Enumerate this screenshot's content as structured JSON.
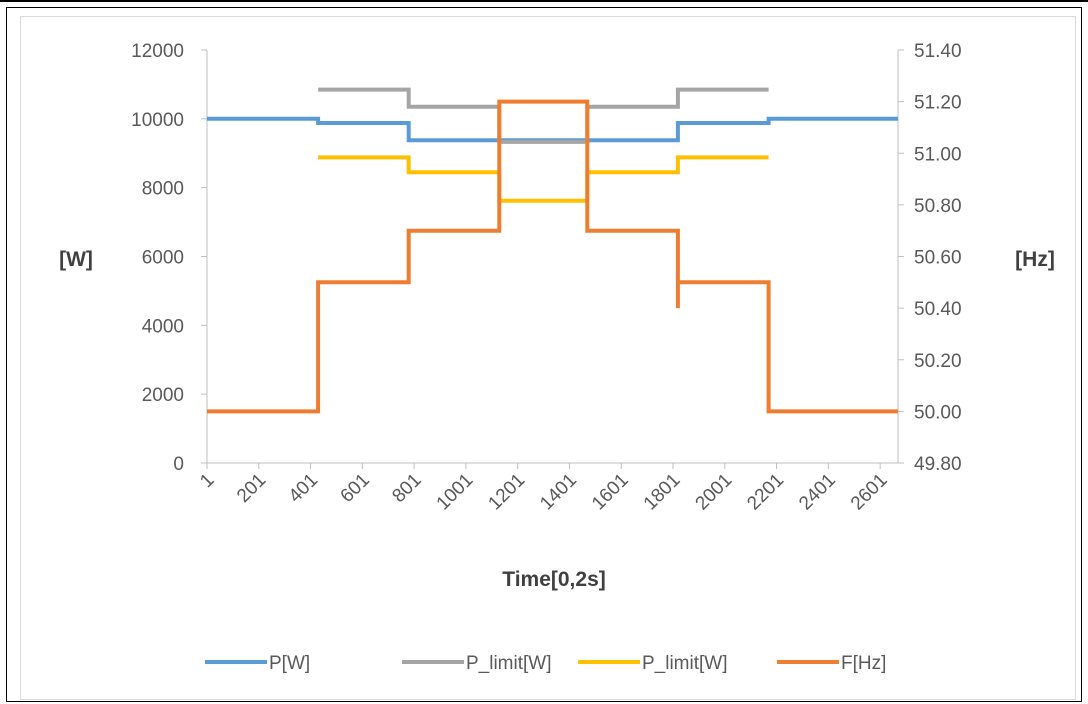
{
  "chart_data": {
    "type": "line",
    "title": "",
    "xlabel": "Time[0,2s]",
    "ylabel_left": "[W]",
    "ylabel_right": "[Hz]",
    "x_ticks": [
      "1",
      "201",
      "401",
      "601",
      "801",
      "1001",
      "1201",
      "1401",
      "1601",
      "1801",
      "2001",
      "2201",
      "2401",
      "2601"
    ],
    "xlim": [
      1,
      2670
    ],
    "ylim_left": [
      0,
      12000
    ],
    "ylim_right": [
      49.8,
      51.4
    ],
    "y_left_ticks": [
      0,
      2000,
      4000,
      6000,
      8000,
      10000,
      12000
    ],
    "y_right_ticks": [
      "49.80",
      "50.00",
      "50.20",
      "50.40",
      "50.60",
      "50.80",
      "51.00",
      "51.20",
      "51.40"
    ],
    "grid": false,
    "legend_position": "bottom",
    "series": [
      {
        "name": "P[W]",
        "axis": "left",
        "color": "#5b9bd5",
        "x": [
          1,
          430,
          430,
          780,
          780,
          1130,
          1130,
          1470,
          1470,
          1820,
          1820,
          2170,
          2170,
          2670
        ],
        "y": [
          10000,
          10000,
          9880,
          9880,
          9380,
          9380,
          9380,
          9380,
          9380,
          9380,
          9880,
          9880,
          10000,
          10000
        ]
      },
      {
        "name": "P_limit[W]",
        "axis": "left",
        "color": "#a5a5a5",
        "x": [
          430,
          780,
          780,
          1130,
          1130,
          1470,
          1470,
          1820,
          1820,
          2170
        ],
        "y": [
          10850,
          10850,
          10350,
          10350,
          9330,
          9330,
          10350,
          10350,
          10850,
          10850
        ]
      },
      {
        "name": "P_limit[W]",
        "axis": "left",
        "color": "#ffc000",
        "x": [
          430,
          780,
          780,
          1130,
          1130,
          1470,
          1470,
          1820,
          1820,
          2170
        ],
        "y": [
          8880,
          8880,
          8450,
          8450,
          7620,
          7620,
          8450,
          8450,
          8880,
          8880
        ]
      },
      {
        "name": "F[Hz]",
        "axis": "right",
        "color": "#ed7d31",
        "x": [
          1,
          430,
          430,
          780,
          780,
          1130,
          1130,
          1470,
          1470,
          1820,
          1820,
          1820,
          1820,
          2170,
          2170,
          2670
        ],
        "y": [
          50.0,
          50.0,
          50.5,
          50.5,
          50.7,
          50.7,
          51.2,
          51.2,
          50.7,
          50.7,
          50.4,
          50.5,
          50.5,
          50.5,
          50.0,
          50.0
        ]
      }
    ]
  }
}
